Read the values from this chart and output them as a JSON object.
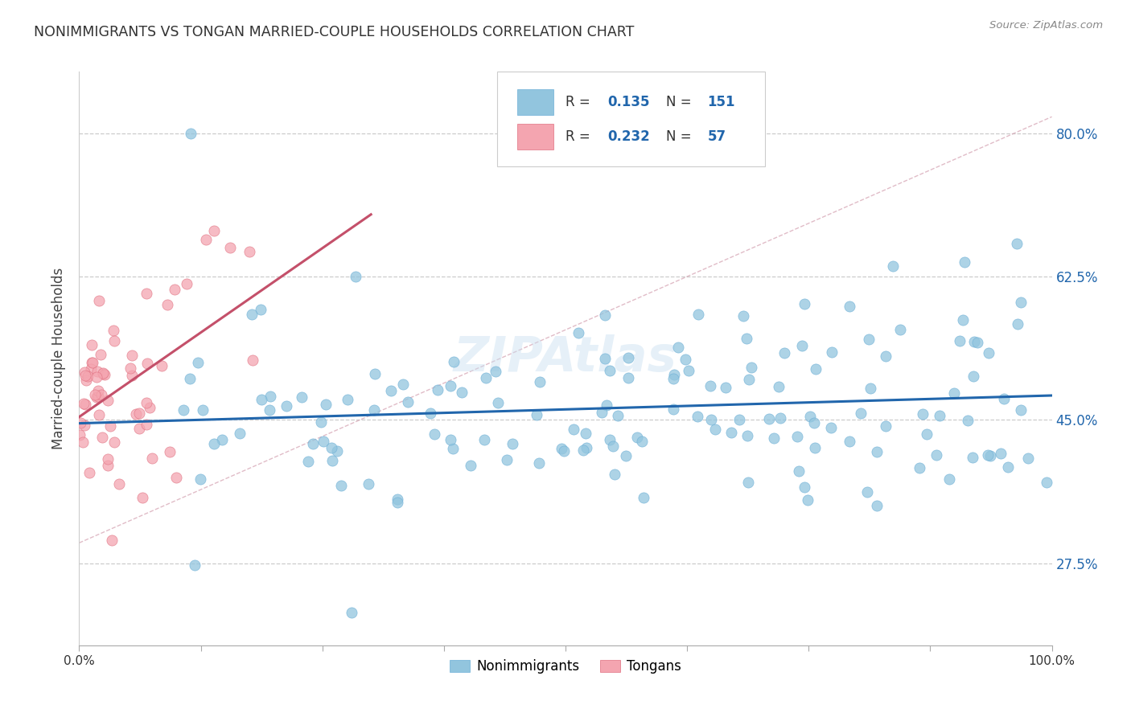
{
  "title": "NONIMMIGRANTS VS TONGAN MARRIED-COUPLE HOUSEHOLDS CORRELATION CHART",
  "source": "Source: ZipAtlas.com",
  "ylabel": "Married-couple Households",
  "ytick_labels": [
    "80.0%",
    "62.5%",
    "45.0%",
    "27.5%"
  ],
  "ytick_values": [
    0.8,
    0.625,
    0.45,
    0.275
  ],
  "legend_label1": "Nonimmigrants",
  "legend_label2": "Tongans",
  "R1": 0.135,
  "N1": 151,
  "R2": 0.232,
  "N2": 57,
  "color_blue": "#92c5de",
  "color_blue_edge": "#6baed6",
  "color_blue_line": "#2166ac",
  "color_pink": "#f4a5b0",
  "color_pink_edge": "#e07080",
  "color_pink_line": "#c4506a",
  "watermark": "ZIPAtlas"
}
